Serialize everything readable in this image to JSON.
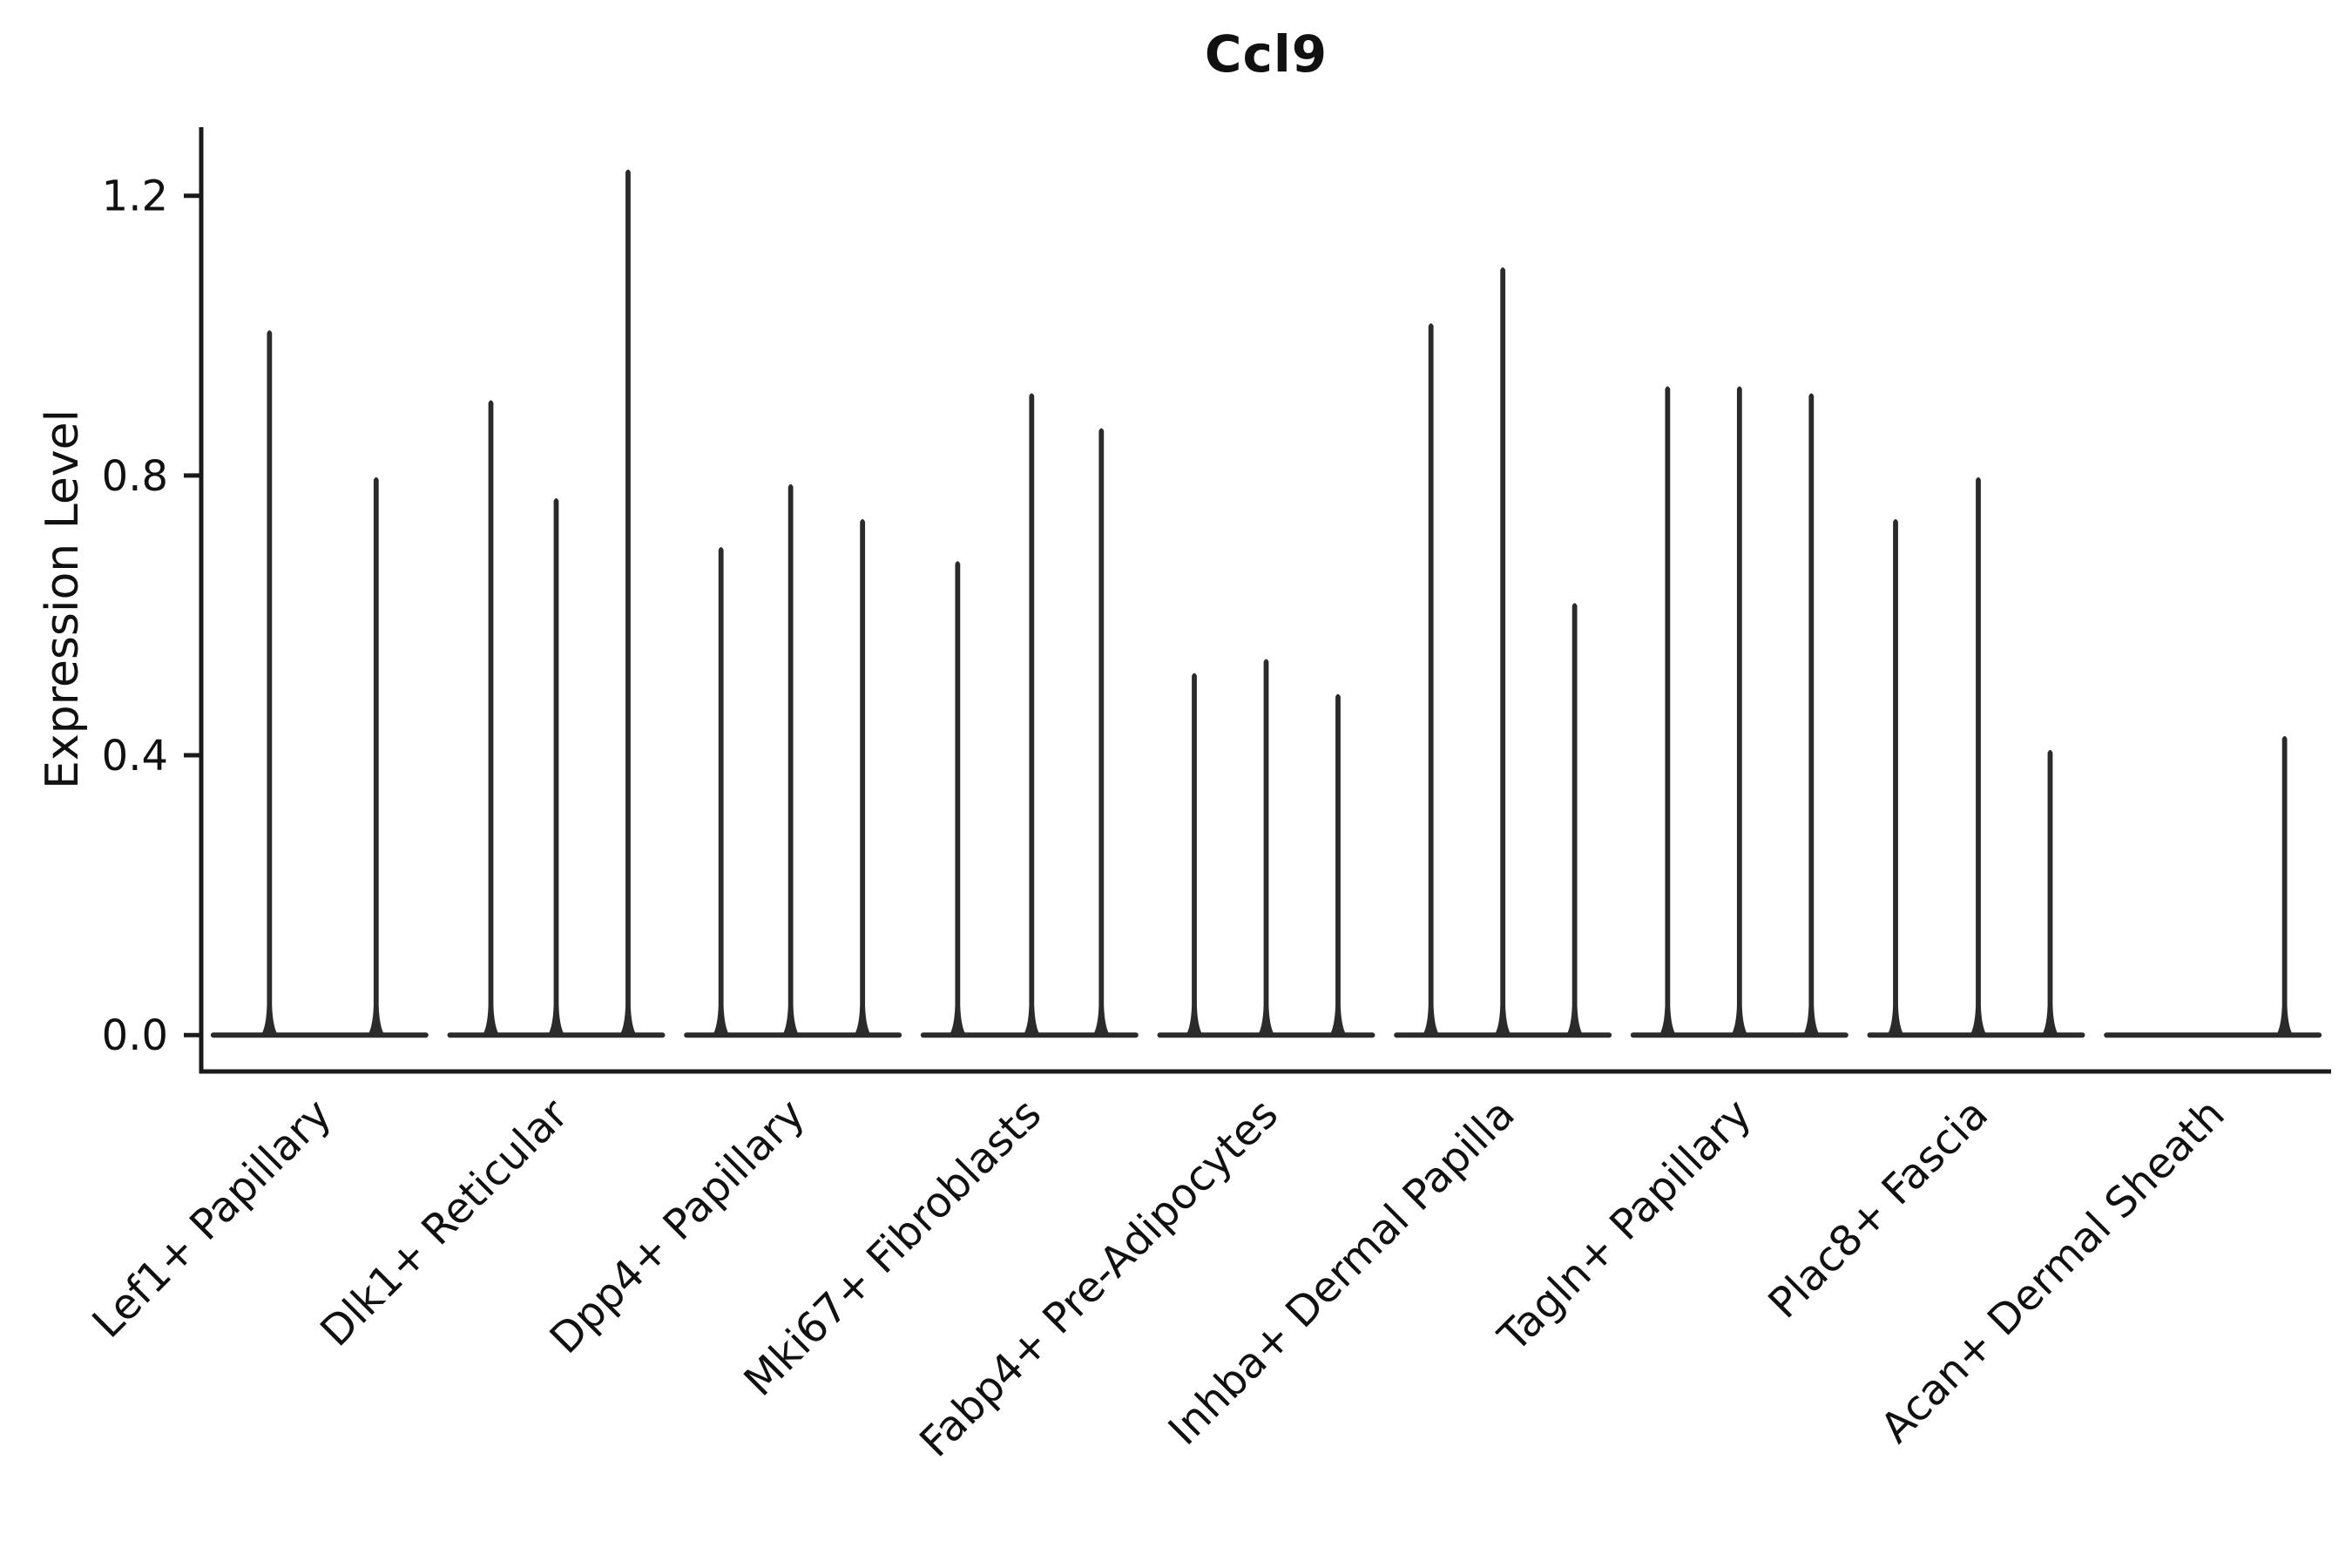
{
  "page": {
    "background": "#ffffff"
  },
  "chart_data": {
    "type": "violin",
    "title": "Ccl9",
    "ylabel": "Expression Level",
    "xlabel": "",
    "ylim": [
      -0.052,
      1.298
    ],
    "yticks": [
      0.0,
      0.4,
      0.8,
      1.2
    ],
    "ytick_labels": [
      "0.0",
      "0.4",
      "0.8",
      "1.2"
    ],
    "grid": false,
    "legend": "none",
    "ink_color": "#2b2b2b",
    "axis_color": "#1a1a1a",
    "groups": [
      {
        "label": "Lef1+ Papillary",
        "spikes": [
          {
            "pos": 0.27,
            "height": 1.01
          },
          {
            "pos": 0.76,
            "height": 0.8
          }
        ]
      },
      {
        "label": "Dlk1+ Reticular",
        "spikes": [
          {
            "pos": 0.2,
            "height": 0.91
          },
          {
            "pos": 0.5,
            "height": 0.77
          },
          {
            "pos": 0.83,
            "height": 1.24
          }
        ]
      },
      {
        "label": "Dpp4+ Papillary",
        "spikes": [
          {
            "pos": 0.17,
            "height": 0.7
          },
          {
            "pos": 0.49,
            "height": 0.79
          },
          {
            "pos": 0.82,
            "height": 0.74
          }
        ]
      },
      {
        "label": "Mki67+ Fibroblasts",
        "spikes": [
          {
            "pos": 0.17,
            "height": 0.68
          },
          {
            "pos": 0.51,
            "height": 0.92
          },
          {
            "pos": 0.83,
            "height": 0.87
          }
        ]
      },
      {
        "label": "Fabp4+ Pre-Adipocytes",
        "spikes": [
          {
            "pos": 0.17,
            "height": 0.52
          },
          {
            "pos": 0.5,
            "height": 0.54
          },
          {
            "pos": 0.83,
            "height": 0.49
          }
        ]
      },
      {
        "label": "Inhba+ Dermal Papilla",
        "spikes": [
          {
            "pos": 0.17,
            "height": 1.02
          },
          {
            "pos": 0.5,
            "height": 1.1
          },
          {
            "pos": 0.83,
            "height": 0.62
          }
        ]
      },
      {
        "label": "Tagln+ Papillary",
        "spikes": [
          {
            "pos": 0.17,
            "height": 0.93
          },
          {
            "pos": 0.5,
            "height": 0.93
          },
          {
            "pos": 0.83,
            "height": 0.92
          }
        ]
      },
      {
        "label": "Plac8+ Fascia",
        "spikes": [
          {
            "pos": 0.13,
            "height": 0.74
          },
          {
            "pos": 0.51,
            "height": 0.8
          },
          {
            "pos": 0.84,
            "height": 0.41
          }
        ]
      },
      {
        "label": "Acan+ Dermal Sheath",
        "spikes": [
          {
            "pos": 0.83,
            "height": 0.43
          }
        ]
      }
    ]
  }
}
